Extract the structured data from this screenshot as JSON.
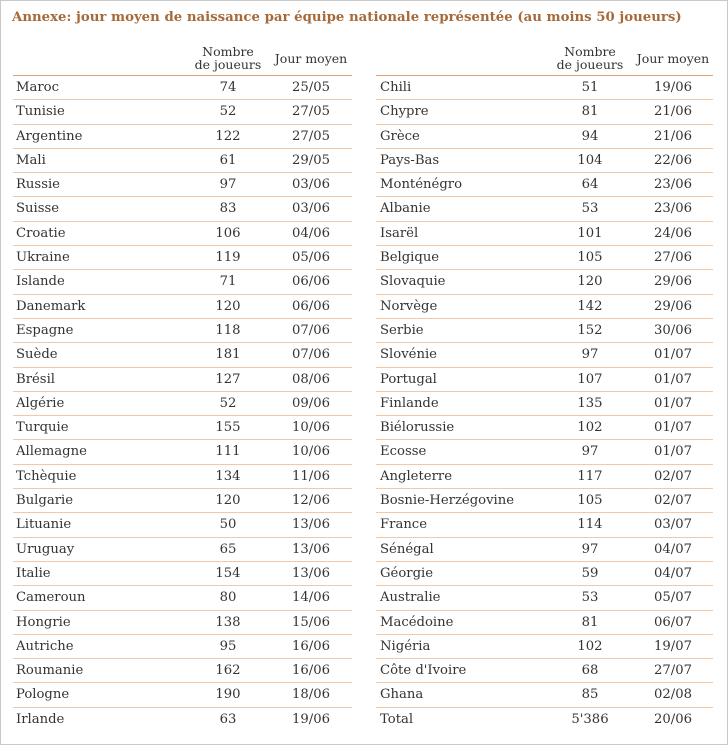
{
  "title": "Annexe: jour moyen de naissance par équipe nationale représentée (au moins 50 joueurs)",
  "columns": {
    "team": "",
    "count_line1": "Nombre",
    "count_line2": "de joueurs",
    "day": "Jour moyen"
  },
  "left_rows": [
    {
      "team": "Maroc",
      "count": "74",
      "day": "25/05"
    },
    {
      "team": "Tunisie",
      "count": "52",
      "day": "27/05"
    },
    {
      "team": "Argentine",
      "count": "122",
      "day": "27/05"
    },
    {
      "team": "Mali",
      "count": "61",
      "day": "29/05"
    },
    {
      "team": "Russie",
      "count": "97",
      "day": "03/06"
    },
    {
      "team": "Suisse",
      "count": "83",
      "day": "03/06"
    },
    {
      "team": "Croatie",
      "count": "106",
      "day": "04/06"
    },
    {
      "team": "Ukraine",
      "count": "119",
      "day": "05/06"
    },
    {
      "team": "Islande",
      "count": "71",
      "day": "06/06"
    },
    {
      "team": "Danemark",
      "count": "120",
      "day": "06/06"
    },
    {
      "team": "Espagne",
      "count": "118",
      "day": "07/06"
    },
    {
      "team": "Suède",
      "count": "181",
      "day": "07/06"
    },
    {
      "team": "Brésil",
      "count": "127",
      "day": "08/06"
    },
    {
      "team": "Algérie",
      "count": "52",
      "day": "09/06"
    },
    {
      "team": "Turquie",
      "count": "155",
      "day": "10/06"
    },
    {
      "team": "Allemagne",
      "count": "111",
      "day": "10/06"
    },
    {
      "team": "Tchèquie",
      "count": "134",
      "day": "11/06"
    },
    {
      "team": "Bulgarie",
      "count": "120",
      "day": "12/06"
    },
    {
      "team": "Lituanie",
      "count": "50",
      "day": "13/06"
    },
    {
      "team": "Uruguay",
      "count": "65",
      "day": "13/06"
    },
    {
      "team": "Italie",
      "count": "154",
      "day": "13/06"
    },
    {
      "team": "Cameroun",
      "count": "80",
      "day": "14/06"
    },
    {
      "team": "Hongrie",
      "count": "138",
      "day": "15/06"
    },
    {
      "team": "Autriche",
      "count": "95",
      "day": "16/06"
    },
    {
      "team": "Roumanie",
      "count": "162",
      "day": "16/06"
    },
    {
      "team": "Pologne",
      "count": "190",
      "day": "18/06"
    },
    {
      "team": "Irlande",
      "count": "63",
      "day": "19/06"
    }
  ],
  "right_rows": [
    {
      "team": "Chili",
      "count": "51",
      "day": "19/06"
    },
    {
      "team": "Chypre",
      "count": "81",
      "day": "21/06"
    },
    {
      "team": "Grèce",
      "count": "94",
      "day": "21/06"
    },
    {
      "team": "Pays-Bas",
      "count": "104",
      "day": "22/06"
    },
    {
      "team": "Monténégro",
      "count": "64",
      "day": "23/06"
    },
    {
      "team": "Albanie",
      "count": "53",
      "day": "23/06"
    },
    {
      "team": "Isarël",
      "count": "101",
      "day": "24/06"
    },
    {
      "team": "Belgique",
      "count": "105",
      "day": "27/06"
    },
    {
      "team": "Slovaquie",
      "count": "120",
      "day": "29/06"
    },
    {
      "team": "Norvège",
      "count": "142",
      "day": "29/06"
    },
    {
      "team": "Serbie",
      "count": "152",
      "day": "30/06"
    },
    {
      "team": "Slovénie",
      "count": "97",
      "day": "01/07"
    },
    {
      "team": "Portugal",
      "count": "107",
      "day": "01/07"
    },
    {
      "team": "Finlande",
      "count": "135",
      "day": "01/07"
    },
    {
      "team": "Biélorussie",
      "count": "102",
      "day": "01/07"
    },
    {
      "team": "Ecosse",
      "count": "97",
      "day": "01/07"
    },
    {
      "team": "Angleterre",
      "count": "117",
      "day": "02/07"
    },
    {
      "team": "Bosnie-Herzégovine",
      "count": "105",
      "day": "02/07"
    },
    {
      "team": "France",
      "count": "114",
      "day": "03/07"
    },
    {
      "team": "Sénégal",
      "count": "97",
      "day": "04/07"
    },
    {
      "team": "Géorgie",
      "count": "59",
      "day": "04/07"
    },
    {
      "team": "Australie",
      "count": "53",
      "day": "05/07"
    },
    {
      "team": "Macédoine",
      "count": "81",
      "day": "06/07"
    },
    {
      "team": "Nigéria",
      "count": "102",
      "day": "19/07"
    },
    {
      "team": "Côte d'Ivoire",
      "count": "68",
      "day": "27/07"
    },
    {
      "team": "Ghana",
      "count": "85",
      "day": "02/08"
    },
    {
      "team": "Total",
      "count": "5'386",
      "day": "20/06"
    }
  ]
}
